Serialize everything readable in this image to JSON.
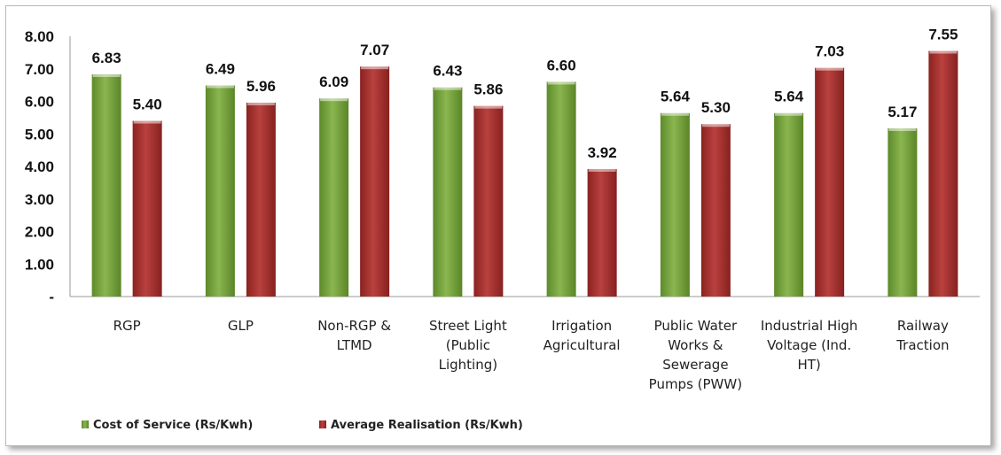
{
  "chart_data": {
    "type": "bar",
    "categories": [
      [
        "RGP"
      ],
      [
        "GLP"
      ],
      [
        "Non-RGP &",
        "LTMD"
      ],
      [
        "Street Light",
        "(Public",
        "Lighting)"
      ],
      [
        "Irrigation",
        "Agricultural"
      ],
      [
        "Public Water",
        "Works &",
        "Sewerage",
        "Pumps (PWW)"
      ],
      [
        "Industrial High",
        "Voltage (Ind.",
        "HT)"
      ],
      [
        "Railway",
        "Traction"
      ]
    ],
    "series": [
      {
        "name": "Cost of Service (Rs/Kwh)",
        "color": "#77a03a",
        "values": [
          6.83,
          6.49,
          6.09,
          6.43,
          6.6,
          5.64,
          5.64,
          5.17
        ],
        "labels": [
          "6.83",
          "6.49",
          "6.09",
          "6.43",
          "6.60",
          "5.64",
          "5.64",
          "5.17"
        ]
      },
      {
        "name": "Average Realisation (Rs/Kwh)",
        "color": "#a3302e",
        "values": [
          5.4,
          5.96,
          7.07,
          5.86,
          3.92,
          5.3,
          7.03,
          7.55
        ],
        "labels": [
          "5.40",
          "5.96",
          "7.07",
          "5.86",
          "3.92",
          "5.30",
          "7.03",
          "7.55"
        ]
      }
    ],
    "y_ticks": [
      "-",
      "1.00",
      "2.00",
      "3.00",
      "4.00",
      "5.00",
      "6.00",
      "7.00",
      "8.00"
    ],
    "ylim": [
      0,
      8
    ],
    "title": "",
    "xlabel": "",
    "ylabel": "",
    "grid": false,
    "legend": "bottom-left"
  }
}
